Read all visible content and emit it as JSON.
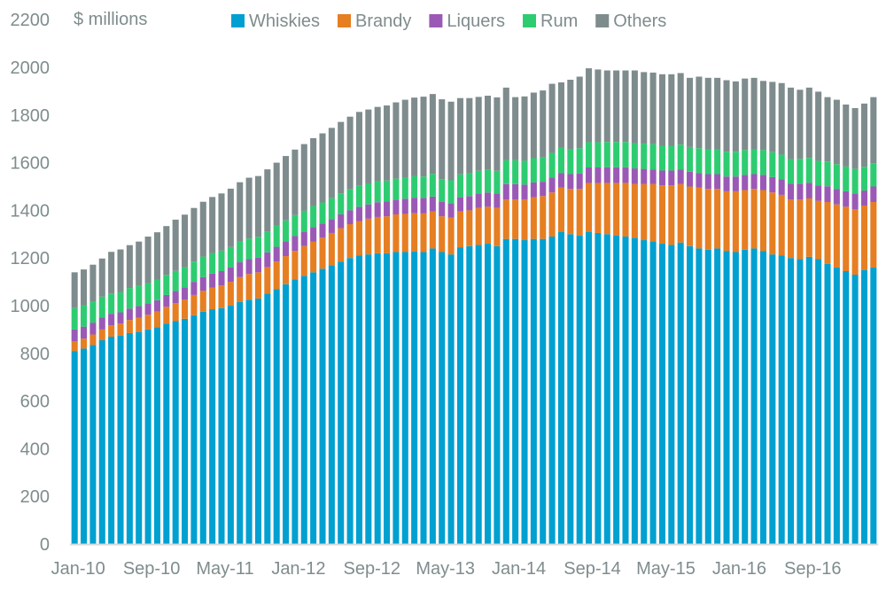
{
  "chart_data": {
    "type": "bar",
    "stacked": true,
    "title": "",
    "unit_label": "$ millions",
    "xlabel": "",
    "ylabel": "$ millions",
    "ylim": [
      0,
      2200
    ],
    "yticks": [
      0,
      200,
      400,
      600,
      800,
      1000,
      1200,
      1400,
      1600,
      1800,
      2000,
      2200
    ],
    "xtick_labels": [
      "Jan-10",
      "Sep-10",
      "May-11",
      "Jan-12",
      "Sep-12",
      "May-13",
      "Jan-14",
      "Sep-14",
      "May-15",
      "Jan-16",
      "Sep-16"
    ],
    "xtick_every": 8,
    "grid": false,
    "legend_position": "top",
    "categories": [
      "Jan-10",
      "Feb-10",
      "Mar-10",
      "Apr-10",
      "May-10",
      "Jun-10",
      "Jul-10",
      "Aug-10",
      "Sep-10",
      "Oct-10",
      "Nov-10",
      "Dec-10",
      "Jan-11",
      "Feb-11",
      "Mar-11",
      "Apr-11",
      "May-11",
      "Jun-11",
      "Jul-11",
      "Aug-11",
      "Sep-11",
      "Oct-11",
      "Nov-11",
      "Dec-11",
      "Jan-12",
      "Feb-12",
      "Mar-12",
      "Apr-12",
      "May-12",
      "Jun-12",
      "Jul-12",
      "Aug-12",
      "Sep-12",
      "Oct-12",
      "Nov-12",
      "Dec-12",
      "Jan-13",
      "Feb-13",
      "Mar-13",
      "Apr-13",
      "May-13",
      "Jun-13",
      "Jul-13",
      "Aug-13",
      "Sep-13",
      "Oct-13",
      "Nov-13",
      "Dec-13",
      "Jan-14",
      "Feb-14",
      "Mar-14",
      "Apr-14",
      "May-14",
      "Jun-14",
      "Jul-14",
      "Aug-14",
      "Sep-14",
      "Oct-14",
      "Nov-14",
      "Dec-14",
      "Jan-15",
      "Feb-15",
      "Mar-15",
      "Apr-15",
      "May-15",
      "Jun-15",
      "Jul-15",
      "Aug-15",
      "Sep-15",
      "Oct-15",
      "Nov-15",
      "Dec-15",
      "Jan-16",
      "Feb-16",
      "Mar-16",
      "Apr-16",
      "May-16",
      "Jun-16",
      "Jul-16",
      "Aug-16",
      "Sep-16",
      "Oct-16",
      "Nov-16",
      "Dec-16",
      "Jan-17",
      "Feb-17",
      "Mar-17",
      "Apr-17"
    ],
    "series": [
      {
        "name": "Whiskies",
        "color": "#00a0d1",
        "values": [
          810,
          820,
          835,
          855,
          870,
          875,
          885,
          890,
          900,
          910,
          925,
          935,
          945,
          960,
          975,
          985,
          990,
          1000,
          1015,
          1025,
          1030,
          1050,
          1070,
          1090,
          1110,
          1125,
          1140,
          1155,
          1170,
          1185,
          1200,
          1210,
          1215,
          1220,
          1220,
          1225,
          1225,
          1228,
          1225,
          1240,
          1225,
          1215,
          1245,
          1250,
          1255,
          1260,
          1250,
          1280,
          1280,
          1275,
          1280,
          1280,
          1290,
          1310,
          1300,
          1295,
          1310,
          1305,
          1300,
          1295,
          1290,
          1285,
          1275,
          1270,
          1260,
          1255,
          1265,
          1250,
          1240,
          1235,
          1240,
          1230,
          1225,
          1235,
          1240,
          1230,
          1215,
          1210,
          1200,
          1195,
          1205,
          1195,
          1175,
          1160,
          1145,
          1130,
          1150,
          1160
        ]
      },
      {
        "name": "Brandy",
        "color": "#e67e22",
        "values": [
          40,
          42,
          44,
          45,
          48,
          50,
          55,
          60,
          62,
          65,
          70,
          75,
          80,
          85,
          88,
          90,
          95,
          100,
          105,
          108,
          110,
          112,
          115,
          118,
          120,
          125,
          128,
          130,
          135,
          140,
          142,
          145,
          150,
          152,
          155,
          158,
          160,
          160,
          162,
          155,
          150,
          155,
          150,
          150,
          155,
          155,
          160,
          165,
          165,
          170,
          175,
          180,
          185,
          185,
          190,
          195,
          205,
          210,
          215,
          220,
          225,
          225,
          235,
          240,
          245,
          250,
          245,
          250,
          255,
          255,
          250,
          250,
          255,
          250,
          250,
          255,
          260,
          255,
          245,
          250,
          245,
          245,
          260,
          265,
          270,
          275,
          270,
          275
        ]
      },
      {
        "name": "Liquers",
        "color": "#9b59b6",
        "values": [
          50,
          50,
          50,
          50,
          48,
          47,
          48,
          48,
          48,
          48,
          50,
          52,
          52,
          55,
          57,
          60,
          60,
          60,
          62,
          62,
          62,
          62,
          62,
          62,
          62,
          60,
          62,
          60,
          58,
          58,
          58,
          60,
          60,
          62,
          62,
          62,
          64,
          65,
          65,
          63,
          60,
          60,
          60,
          60,
          60,
          60,
          60,
          65,
          65,
          63,
          62,
          60,
          62,
          62,
          62,
          65,
          65,
          65,
          66,
          66,
          66,
          66,
          64,
          62,
          62,
          62,
          62,
          62,
          62,
          62,
          62,
          62,
          62,
          64,
          62,
          64,
          65,
          65,
          66,
          67,
          66,
          64,
          66,
          65,
          65,
          65,
          63,
          65
        ]
      },
      {
        "name": "Rum",
        "color": "#2ecc71",
        "values": [
          90,
          90,
          88,
          88,
          85,
          84,
          86,
          86,
          85,
          85,
          84,
          84,
          85,
          85,
          86,
          86,
          86,
          86,
          86,
          87,
          87,
          88,
          88,
          88,
          88,
          88,
          88,
          88,
          88,
          88,
          88,
          88,
          88,
          88,
          88,
          88,
          90,
          90,
          90,
          95,
          96,
          96,
          96,
          96,
          96,
          96,
          96,
          100,
          100,
          100,
          102,
          103,
          104,
          105,
          106,
          106,
          106,
          106,
          106,
          106,
          106,
          106,
          106,
          106,
          104,
          104,
          104,
          104,
          104,
          104,
          104,
          104,
          104,
          104,
          104,
          104,
          104,
          104,
          104,
          104,
          104,
          104,
          104,
          104,
          104,
          104,
          100,
          98
        ]
      },
      {
        "name": "Others",
        "color": "#7f8c8d",
        "values": [
          150,
          150,
          155,
          160,
          175,
          180,
          180,
          185,
          195,
          200,
          205,
          215,
          220,
          225,
          230,
          235,
          240,
          245,
          250,
          255,
          255,
          260,
          265,
          270,
          275,
          280,
          285,
          290,
          295,
          300,
          305,
          310,
          310,
          312,
          315,
          320,
          325,
          330,
          335,
          335,
          335,
          330,
          320,
          315,
          310,
          310,
          308,
          305,
          265,
          270,
          275,
          280,
          290,
          275,
          290,
          300,
          310,
          305,
          300,
          300,
          300,
          305,
          300,
          300,
          300,
          300,
          300,
          290,
          300,
          300,
          300,
          300,
          295,
          300,
          300,
          290,
          295,
          300,
          300,
          290,
          295,
          290,
          270,
          270,
          260,
          255,
          265,
          277
        ]
      }
    ]
  }
}
